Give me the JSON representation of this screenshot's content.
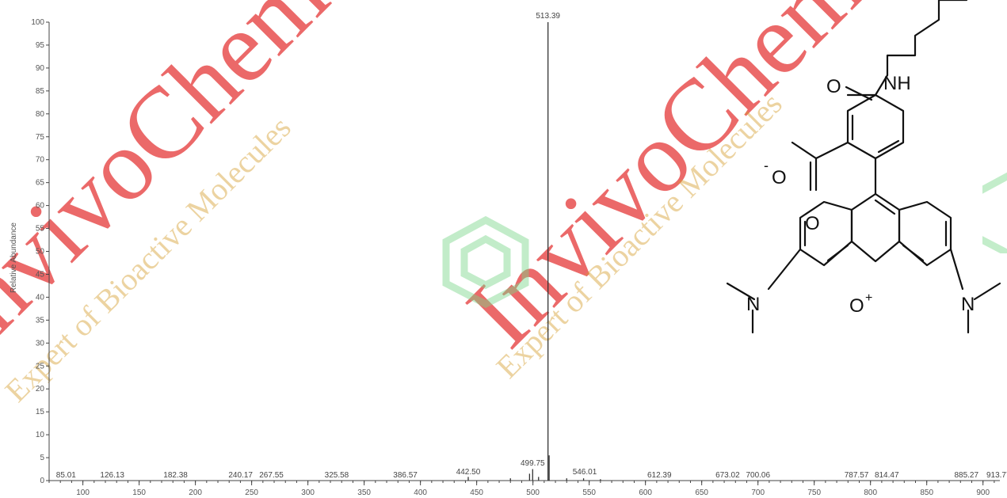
{
  "watermark": {
    "brand": "InvivoChem",
    "tagline1": "Expert of Bioactive Molecules",
    "tagline2": "Expert of Bioactive Molecules"
  },
  "colors": {
    "axis": "#444444",
    "peak": "#333333",
    "watermark_red": "#e85050",
    "watermark_gold": "#d6a030",
    "hex_green": "#7ad68a"
  },
  "chart_data": {
    "type": "bar",
    "title": "",
    "xlabel": "",
    "ylabel": "Relative Abundance",
    "xlim": [
      70,
      915
    ],
    "ylim": [
      0,
      100
    ],
    "x_ticks": [
      100,
      150,
      200,
      250,
      300,
      350,
      400,
      450,
      500,
      550,
      600,
      650,
      700,
      750,
      800,
      850,
      900
    ],
    "y_ticks": [
      0,
      5,
      10,
      15,
      20,
      25,
      30,
      35,
      40,
      45,
      50,
      55,
      60,
      65,
      70,
      75,
      80,
      85,
      90,
      95,
      100
    ],
    "peaks": [
      {
        "mz": 513.39,
        "intensity": 100
      },
      {
        "mz": 514.4,
        "intensity": 5.5
      },
      {
        "mz": 499.75,
        "intensity": 2.5
      },
      {
        "mz": 497.0,
        "intensity": 1.5
      },
      {
        "mz": 505.0,
        "intensity": 0.8
      },
      {
        "mz": 442.5,
        "intensity": 0.8
      },
      {
        "mz": 480.0,
        "intensity": 0.5
      },
      {
        "mz": 530.0,
        "intensity": 0.5
      },
      {
        "mz": 545.01,
        "intensity": 0.5
      },
      {
        "mz": 560.0,
        "intensity": 0.3
      }
    ],
    "labels": [
      {
        "mz": 85.01,
        "text": "85.01"
      },
      {
        "mz": 126.13,
        "text": "126.13"
      },
      {
        "mz": 182.38,
        "text": "182.38"
      },
      {
        "mz": 240.17,
        "text": "240.17"
      },
      {
        "mz": 267.55,
        "text": "267.55"
      },
      {
        "mz": 325.58,
        "text": "325.58"
      },
      {
        "mz": 386.57,
        "text": "386.57"
      },
      {
        "mz": 442.5,
        "text": "442.50"
      },
      {
        "mz": 499.75,
        "text": "499.75"
      },
      {
        "mz": 546.01,
        "text": "546.01"
      },
      {
        "mz": 612.39,
        "text": "612.39"
      },
      {
        "mz": 673.02,
        "text": "673.02"
      },
      {
        "mz": 700.06,
        "text": "700.06"
      },
      {
        "mz": 787.57,
        "text": "787.57"
      },
      {
        "mz": 814.47,
        "text": "814.47"
      },
      {
        "mz": 885.27,
        "text": "885.27"
      },
      {
        "mz": 913.77,
        "text": "913.77"
      }
    ],
    "base_peak_label": "513.39"
  },
  "structure": {
    "atom_NH": "NH",
    "atom_O_amide": "O",
    "atom_O_carboxylate": "O",
    "charge_minus": "-",
    "atom_O_carbonyl": "O",
    "atom_N_left": "N",
    "atom_N_right": "N",
    "atom_O_ring": "O",
    "charge_plus": "+"
  }
}
